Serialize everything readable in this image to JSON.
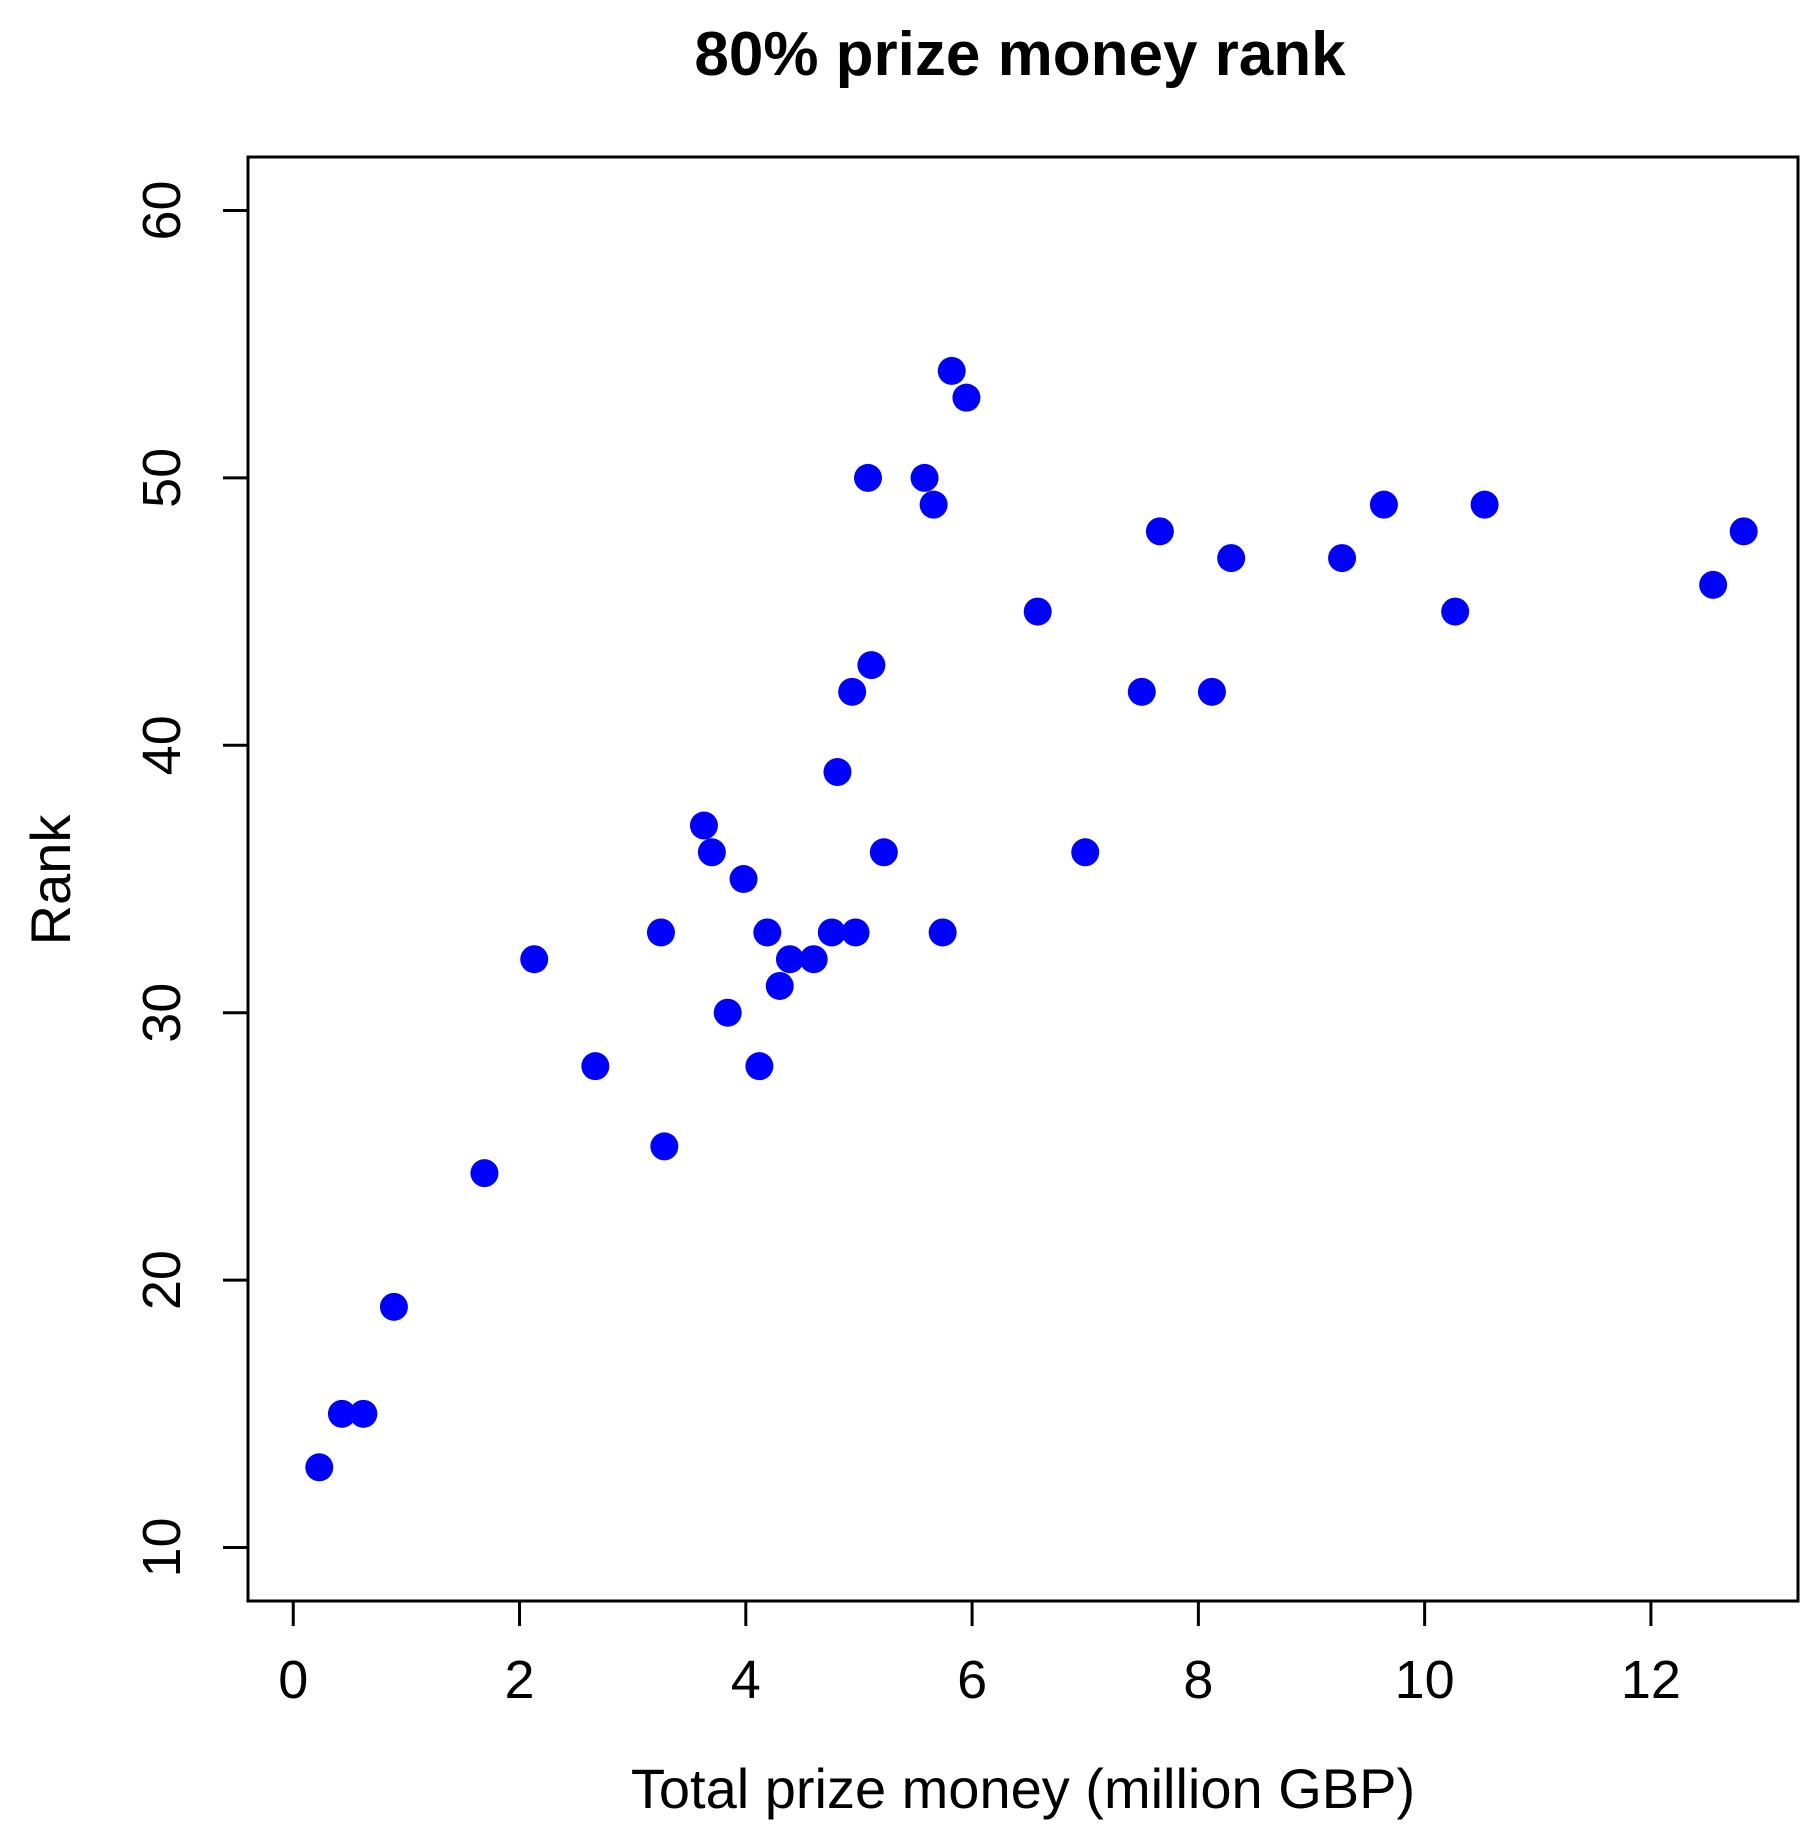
{
  "chart_data": {
    "type": "scatter",
    "title": "80% prize money rank",
    "xlabel": "Total prize money (million GBP)",
    "ylabel": "Rank",
    "xlim": [
      -0.4,
      13.3
    ],
    "ylim": [
      8,
      62
    ],
    "xticks": [
      0,
      2,
      4,
      6,
      8,
      10,
      12
    ],
    "yticks": [
      10,
      20,
      30,
      40,
      50,
      60
    ],
    "grid": false,
    "legend": "none",
    "marker_color": "#0000ff",
    "series": [
      {
        "x": [
          0.23,
          0.43,
          0.62,
          0.89,
          1.69,
          2.13,
          2.67,
          3.25,
          3.28,
          3.63,
          3.7,
          3.84,
          3.98,
          4.12,
          4.19,
          4.3,
          4.39,
          4.6,
          4.76,
          4.81,
          4.94,
          4.97,
          5.08,
          5.11,
          5.22,
          5.58,
          5.66,
          5.74,
          5.82,
          5.95,
          6.58,
          7.0,
          7.5,
          7.66,
          8.12,
          8.29,
          9.27,
          9.64,
          10.27,
          10.53,
          12.55,
          12.82
        ],
        "y": [
          13,
          15,
          15,
          19,
          24,
          32,
          28,
          33,
          25,
          37,
          36,
          30,
          35,
          28,
          33,
          31,
          32,
          32,
          33,
          39,
          42,
          33,
          50,
          43,
          36,
          50,
          49,
          33,
          54,
          53,
          45,
          36,
          42,
          48,
          42,
          47,
          47,
          49,
          45,
          49,
          46,
          48
        ]
      }
    ]
  }
}
